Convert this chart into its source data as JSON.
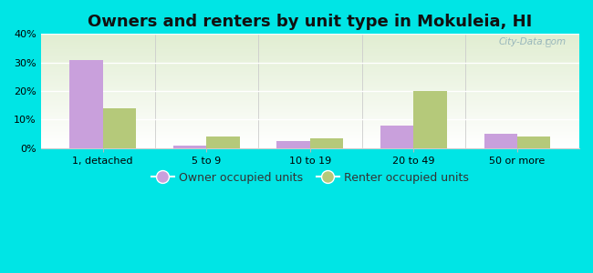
{
  "title": "Owners and renters by unit type in Mokuleia, HI",
  "categories": [
    "1, detached",
    "5 to 9",
    "10 to 19",
    "20 to 49",
    "50 or more"
  ],
  "owner_values": [
    31,
    1,
    2.5,
    8,
    5
  ],
  "renter_values": [
    14,
    4,
    3.5,
    20,
    4
  ],
  "owner_color": "#c9a0dc",
  "renter_color": "#b5c97a",
  "background_outer": "#00e5e5",
  "ylim": [
    0,
    40
  ],
  "yticks": [
    0,
    10,
    20,
    30,
    40
  ],
  "ytick_labels": [
    "0%",
    "10%",
    "20%",
    "30%",
    "40%"
  ],
  "legend_owner": "Owner occupied units",
  "legend_renter": "Renter occupied units",
  "bar_width": 0.32,
  "title_fontsize": 13,
  "tick_fontsize": 8,
  "legend_fontsize": 9,
  "watermark": "City-Data.com"
}
